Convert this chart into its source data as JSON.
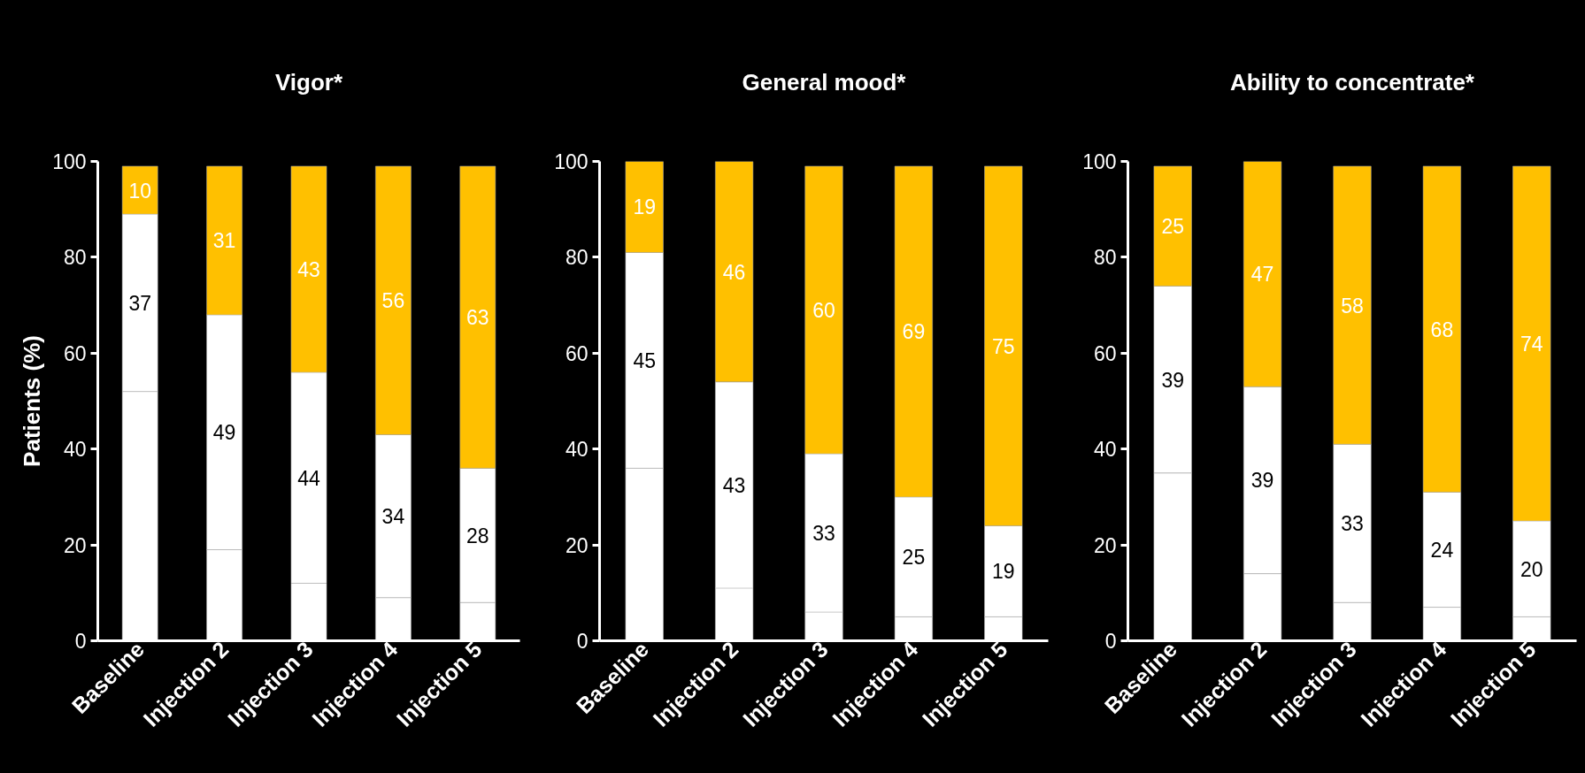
{
  "chart_data": [
    {
      "type": "bar",
      "stacked": true,
      "title": "Vigor*",
      "ylabel": "Patients (%)",
      "categories": [
        "Baseline",
        "Injection 2",
        "Injection 3",
        "Injection 4",
        "Injection 5"
      ],
      "ylim": [
        0,
        100
      ],
      "yticks": [
        0,
        20,
        40,
        60,
        80,
        100
      ],
      "grid": false,
      "series": [
        {
          "color": "#ffffff",
          "values": [
            52,
            19,
            12,
            9,
            8
          ],
          "value_labels": [
            null,
            null,
            null,
            null,
            null
          ]
        },
        {
          "color": "#ffffff",
          "values": [
            37,
            49,
            44,
            34,
            28
          ],
          "value_labels": [
            "37",
            "49",
            "44",
            "34",
            "28"
          ]
        },
        {
          "color": "#ffc000",
          "values": [
            10,
            31,
            43,
            56,
            63
          ],
          "value_labels": [
            "10",
            "31",
            "43",
            "56",
            "63"
          ]
        }
      ]
    },
    {
      "type": "bar",
      "stacked": true,
      "title": "General mood*",
      "categories": [
        "Baseline",
        "Injection 2",
        "Injection 3",
        "Injection 4",
        "Injection 5"
      ],
      "ylim": [
        0,
        100
      ],
      "yticks": [
        0,
        20,
        40,
        60,
        80,
        100
      ],
      "grid": false,
      "series": [
        {
          "color": "#ffffff",
          "values": [
            36,
            11,
            6,
            5,
            5
          ],
          "value_labels": [
            null,
            null,
            null,
            null,
            null
          ]
        },
        {
          "color": "#ffffff",
          "values": [
            45,
            43,
            33,
            25,
            19
          ],
          "value_labels": [
            "45",
            "43",
            "33",
            "25",
            "19"
          ]
        },
        {
          "color": "#ffc000",
          "values": [
            19,
            46,
            60,
            69,
            75
          ],
          "value_labels": [
            "19",
            "46",
            "60",
            "69",
            "75"
          ]
        }
      ]
    },
    {
      "type": "bar",
      "stacked": true,
      "title": "Ability to concentrate*",
      "categories": [
        "Baseline",
        "Injection 2",
        "Injection 3",
        "Injection 4",
        "Injection 5"
      ],
      "ylim": [
        0,
        100
      ],
      "yticks": [
        0,
        20,
        40,
        60,
        80,
        100
      ],
      "grid": false,
      "series": [
        {
          "color": "#ffffff",
          "values": [
            35,
            14,
            8,
            7,
            5
          ],
          "value_labels": [
            null,
            null,
            null,
            null,
            null
          ]
        },
        {
          "color": "#ffffff",
          "values": [
            39,
            39,
            33,
            24,
            20
          ],
          "value_labels": [
            "39",
            "39",
            "33",
            "24",
            "20"
          ]
        },
        {
          "color": "#ffc000",
          "values": [
            25,
            47,
            58,
            68,
            74
          ],
          "value_labels": [
            "25",
            "47",
            "58",
            "68",
            "74"
          ]
        }
      ]
    }
  ]
}
